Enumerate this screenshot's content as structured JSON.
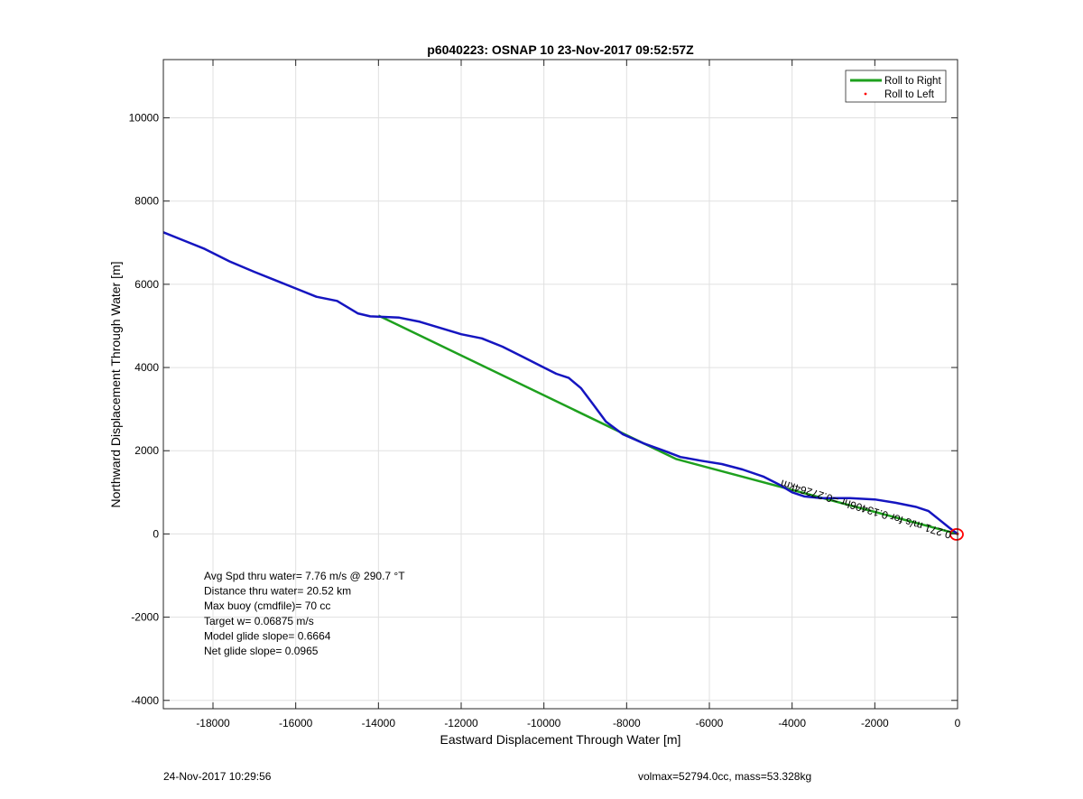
{
  "chart_data": {
    "type": "line",
    "title": "p6040223: OSNAP 10 23-Nov-2017 09:52:57Z",
    "xlabel": "Eastward Displacement Through Water [m]",
    "ylabel": "Northward Displacement Through Water [m]",
    "xlim": [
      -19200,
      0
    ],
    "ylim": [
      -4200,
      11400
    ],
    "xticks": [
      -18000,
      -16000,
      -14000,
      -12000,
      -10000,
      -8000,
      -6000,
      -4000,
      -2000,
      0
    ],
    "yticks": [
      -4000,
      -2000,
      0,
      2000,
      4000,
      6000,
      8000,
      10000
    ],
    "grid": true,
    "legend_position": "top-right",
    "legend": [
      "Roll to Right",
      "Roll to Left"
    ],
    "series": [
      {
        "name": "Roll to Right",
        "color": "#1ea01e",
        "x": [
          0,
          -6800,
          -14000
        ],
        "y": [
          0,
          1800,
          5250
        ]
      },
      {
        "name": "Roll to Left",
        "color": "#ff0000",
        "x": [
          0
        ],
        "y": [
          0
        ]
      },
      {
        "color": "#1515c0",
        "x": [
          0,
          -200,
          -450,
          -700,
          -1000,
          -1500,
          -2000,
          -2600,
          -3300,
          -3700,
          -4000,
          -4300,
          -4700,
          -5200,
          -5700,
          -6200,
          -6700,
          -7100,
          -7600,
          -8100,
          -8500,
          -8800,
          -9100,
          -9400,
          -9700,
          -10000,
          -10500,
          -11000,
          -11500,
          -12000,
          -12500,
          -13000,
          -13500,
          -14000,
          -14200,
          -14500,
          -15000,
          -15500,
          -16000,
          -16500,
          -17000,
          -17600,
          -18200,
          -18700,
          -19200
        ],
        "y": [
          0,
          150,
          350,
          550,
          650,
          750,
          830,
          860,
          860,
          900,
          1000,
          1180,
          1380,
          1550,
          1680,
          1760,
          1850,
          2000,
          2180,
          2400,
          2700,
          3100,
          3500,
          3750,
          3850,
          4000,
          4250,
          4500,
          4700,
          4800,
          4950,
          5100,
          5200,
          5220,
          5230,
          5300,
          5600,
          5700,
          5900,
          6100,
          6300,
          6550,
          6850,
          7050,
          7250
        ]
      }
    ],
    "marker": {
      "x": 0,
      "y": 0,
      "color": "#ff0000"
    },
    "rotated_label": "0.271 m/s for 0.13406hr =0.27264km",
    "annotations": [
      "Avg Spd thru water=  7.76 m/s @ 290.7 °T",
      "Distance thru water= 20.52 km",
      "Max buoy (cmdfile)= 70 cc",
      "Target w= 0.06875 m/s",
      "Model glide slope= 0.6664",
      "Net glide slope= 0.0965"
    ]
  },
  "footer": {
    "left": "24-Nov-2017 10:29:56",
    "right": "volmax=52794.0cc, mass=53.328kg"
  }
}
